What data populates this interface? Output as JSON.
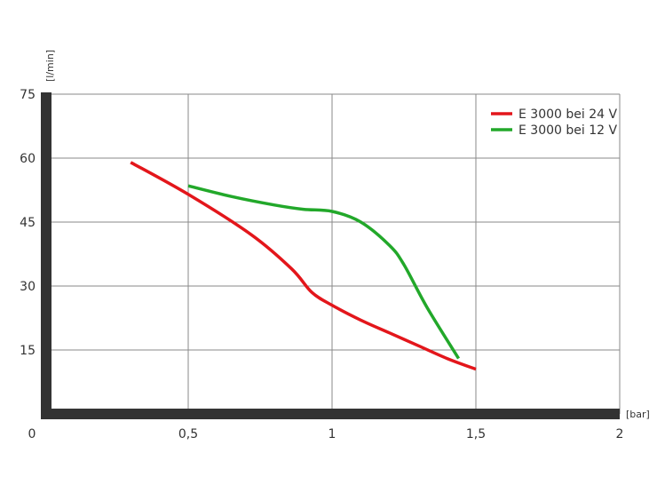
{
  "chart_data": {
    "type": "line",
    "title": "",
    "xlabel": "[bar]",
    "ylabel": "[l/min]",
    "xlim": [
      0,
      2
    ],
    "ylim": [
      0,
      75
    ],
    "x_ticks": [
      0,
      0.5,
      1,
      1.5,
      2
    ],
    "x_tick_labels": [
      "0",
      "0,5",
      "1",
      "1,5",
      "2"
    ],
    "y_ticks": [
      15,
      30,
      45,
      60,
      75
    ],
    "y_tick_labels": [
      "15",
      "30",
      "45",
      "60",
      "75"
    ],
    "grid": true,
    "legend_position": "top-right",
    "series": [
      {
        "name": "E 3000 bei 24 V",
        "color": "#e3161b",
        "points": [
          [
            0.3,
            59
          ],
          [
            0.5,
            51.5
          ],
          [
            0.72,
            42
          ],
          [
            0.86,
            34
          ],
          [
            0.93,
            28.5
          ],
          [
            1.0,
            25.5
          ],
          [
            1.1,
            22
          ],
          [
            1.2,
            19
          ],
          [
            1.3,
            16
          ],
          [
            1.4,
            13
          ],
          [
            1.5,
            10.5
          ]
        ]
      },
      {
        "name": "E 3000 bei 12 V",
        "color": "#22a82a",
        "points": [
          [
            0.5,
            53.5
          ],
          [
            0.65,
            51
          ],
          [
            0.8,
            49
          ],
          [
            0.9,
            48
          ],
          [
            1.0,
            47.5
          ],
          [
            1.1,
            45
          ],
          [
            1.2,
            39.5
          ],
          [
            1.25,
            35
          ],
          [
            1.33,
            25
          ],
          [
            1.44,
            13
          ]
        ]
      }
    ]
  }
}
